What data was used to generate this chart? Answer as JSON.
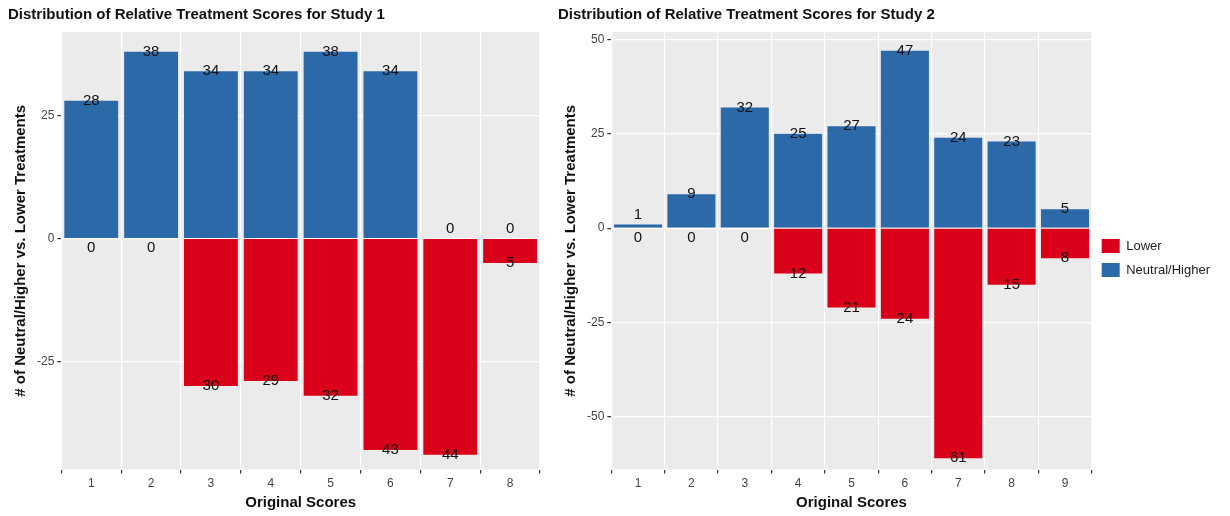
{
  "chart_data": [
    {
      "type": "bar",
      "title": "Distribution of Relative Treatment Scores for Study 1",
      "xlabel": "Original Scores",
      "ylabel": "# of Neutral/Higher vs. Lower Treatments",
      "categories": [
        "1",
        "2",
        "3",
        "4",
        "5",
        "6",
        "7",
        "8"
      ],
      "ylim": [
        -47,
        42
      ],
      "yticks": [
        -25,
        0,
        25
      ],
      "grid": true,
      "legend": false,
      "data_labels": true,
      "series": [
        {
          "color": "#db0019",
          "base": [
            null,
            null,
            -30,
            -29,
            -32,
            -43,
            -44,
            -5
          ],
          "values": [
            0,
            0,
            30,
            29,
            32,
            43,
            44,
            5
          ]
        },
        {
          "color": "#2b69a8",
          "values": [
            28,
            38,
            34,
            34,
            38,
            34,
            0,
            0
          ]
        }
      ]
    },
    {
      "type": "bar",
      "title": "Distribution of Relative Treatment Scores for Study 2",
      "xlabel": "Original Scores",
      "ylabel": "# of Neutral/Higher vs. Lower Treatments",
      "categories": [
        "1",
        "2",
        "3",
        "4",
        "5",
        "6",
        "7",
        "8",
        "9"
      ],
      "ylim": [
        -64,
        52
      ],
      "yticks": [
        -50,
        -25,
        0,
        25,
        50
      ],
      "grid": true,
      "legend": "right",
      "data_labels": true,
      "series": [
        {
          "name": "Lower",
          "color": "#db0019",
          "base": [
            null,
            null,
            null,
            -12,
            -21,
            -24,
            -61,
            -15,
            -8
          ],
          "values": [
            0,
            0,
            0,
            12,
            21,
            24,
            61,
            15,
            8
          ]
        },
        {
          "name": "Neutral/Higher",
          "color": "#2b69a8",
          "values": [
            1,
            9,
            32,
            25,
            27,
            47,
            24,
            23,
            5
          ]
        }
      ]
    }
  ]
}
